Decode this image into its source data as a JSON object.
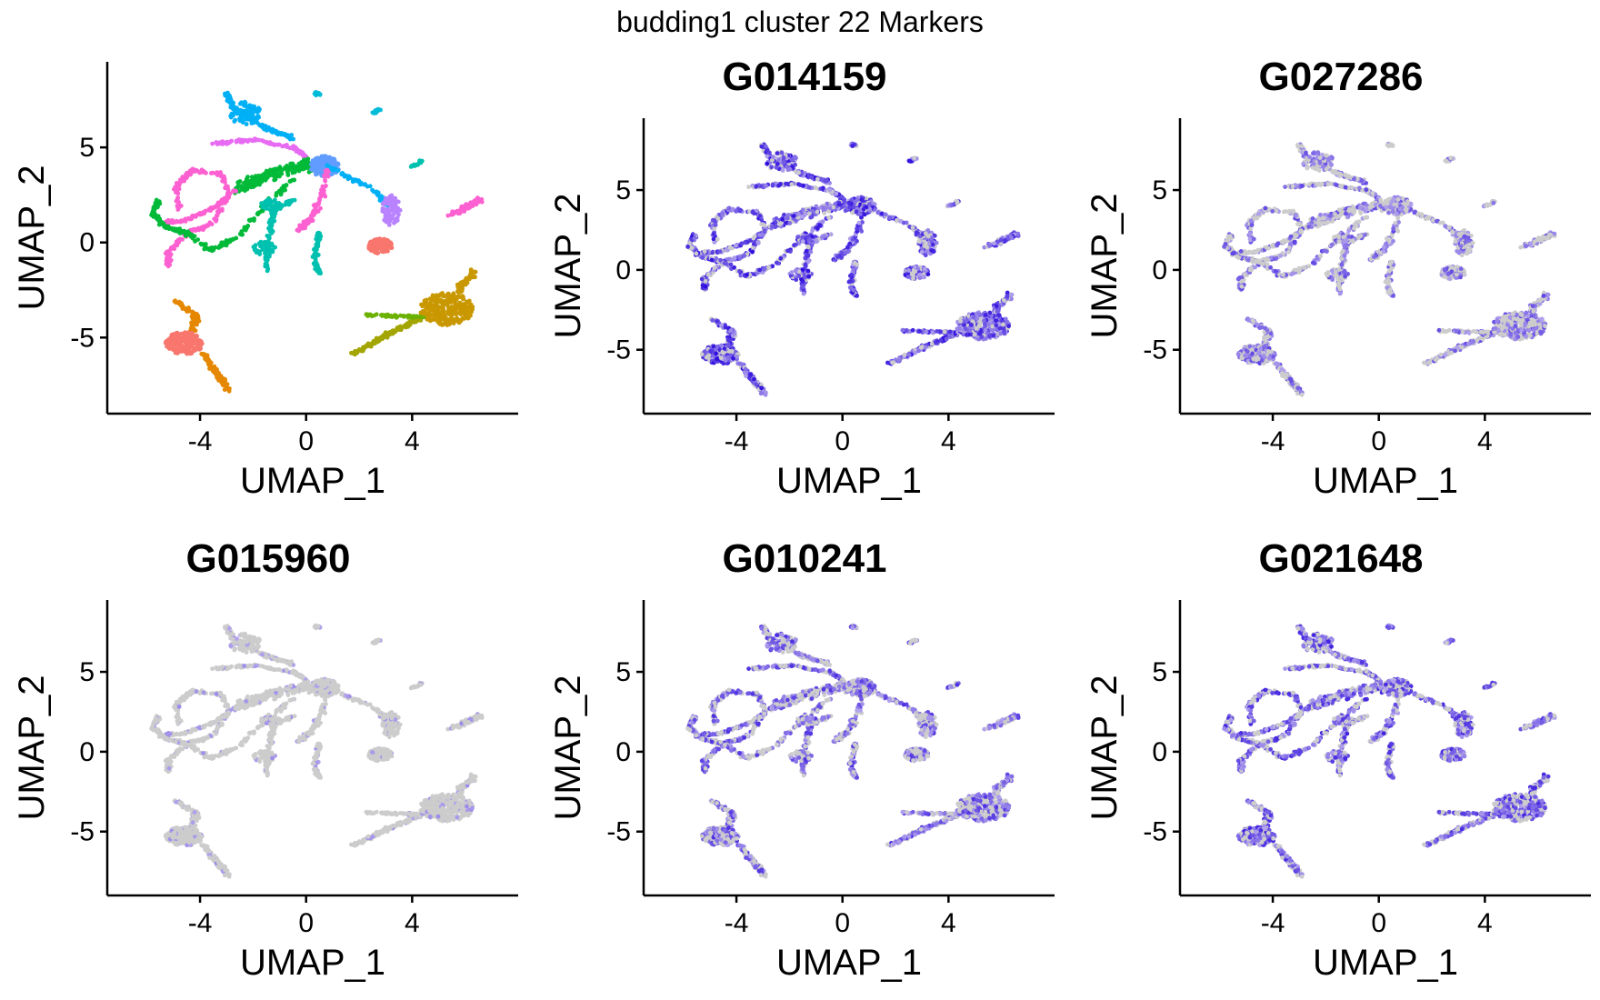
{
  "figure": {
    "title": "budding1 cluster 22 Markers"
  },
  "colors": {
    "gray": "#cccccc",
    "expr_low": "#b4a4ec",
    "expr_high": "#2200dd",
    "cluster_palette": [
      "#f8766d",
      "#e58700",
      "#c99800",
      "#a3a500",
      "#6bb100",
      "#00ba38",
      "#00bf7d",
      "#00c0af",
      "#00bcd8",
      "#00b0f6",
      "#619cff",
      "#b983ff",
      "#e76bf3",
      "#fd61d1",
      "#ff67a4"
    ]
  },
  "axes": {
    "x_label": "UMAP_1",
    "y_label": "UMAP_2",
    "x_ticks": [
      -4,
      0,
      4
    ],
    "y_ticks": [
      -5,
      0,
      5
    ],
    "x_range": [
      -7.5,
      8
    ],
    "y_range": [
      -9,
      9.5
    ]
  },
  "chart_data": [
    {
      "type": "scatter",
      "title": "",
      "mode": "clusters",
      "xlabel": "UMAP_1",
      "ylabel": "UMAP_2"
    },
    {
      "type": "scatter",
      "title": "G014159",
      "mode": "expression",
      "level": 0.7,
      "xlabel": "UMAP_1",
      "ylabel": "UMAP_2"
    },
    {
      "type": "scatter",
      "title": "G027286",
      "mode": "expression",
      "level": 0.45,
      "xlabel": "UMAP_1",
      "ylabel": "UMAP_2"
    },
    {
      "type": "scatter",
      "title": "G015960",
      "mode": "expression",
      "level": 0.12,
      "xlabel": "UMAP_1",
      "ylabel": "UMAP_2"
    },
    {
      "type": "scatter",
      "title": "G010241",
      "mode": "expression",
      "level": 0.55,
      "xlabel": "UMAP_1",
      "ylabel": "UMAP_2"
    },
    {
      "type": "scatter",
      "title": "G021648",
      "mode": "expression",
      "level": 0.6,
      "xlabel": "UMAP_1",
      "ylabel": "UMAP_2"
    }
  ]
}
